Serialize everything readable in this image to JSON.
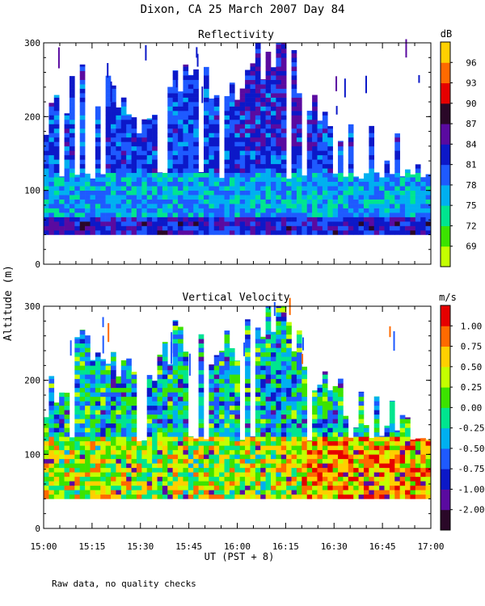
{
  "title": "Dixon, CA 25 March 2007  Day  84",
  "ylabel": "Altitude (m)",
  "xlabel": "UT  (PST + 8)",
  "footnote": "Raw data, no quality checks",
  "chart_data": [
    {
      "type": "heatmap",
      "title": "Reflectivity",
      "x_range_ut": [
        "15:00",
        "17:00"
      ],
      "xticks": [
        "15:00",
        "15:15",
        "15:30",
        "15:45",
        "16:00",
        "16:15",
        "16:30",
        "16:45",
        "17:00"
      ],
      "ylim": [
        0,
        300
      ],
      "yticks": [
        0,
        100,
        200,
        300
      ],
      "colorbar": {
        "unit": "dB",
        "vmin": 67.5,
        "vmax": 99,
        "ticks": [
          "96",
          "93",
          "90",
          "87",
          "84",
          "81",
          "78",
          "75",
          "72",
          "69"
        ],
        "colors": [
          "#c4ff00",
          "#3ce300",
          "#00e58f",
          "#00b0f0",
          "#1e5aff",
          "#0c18c8",
          "#5a0aa0",
          "#2a0828",
          "#e60000",
          "#ff6a00",
          "#ffd000"
        ]
      },
      "data_floor_m": 40,
      "clear_air_top_m": 120,
      "storm_tops_m": [
        {
          "time": "15:00",
          "top": 160
        },
        {
          "time": "15:10",
          "top": 230
        },
        {
          "time": "15:20",
          "top": 245
        },
        {
          "time": "15:30",
          "top": 200
        },
        {
          "time": "15:40",
          "top": 240
        },
        {
          "time": "15:50",
          "top": 250
        },
        {
          "time": "16:00",
          "top": 230
        },
        {
          "time": "16:10",
          "top": 285
        },
        {
          "time": "16:15",
          "top": 285
        },
        {
          "time": "16:20",
          "top": 230
        },
        {
          "time": "16:30",
          "top": 170
        },
        {
          "time": "17:00",
          "top": 130
        }
      ]
    },
    {
      "type": "heatmap",
      "title": "Vertical Velocity",
      "x_range_ut": [
        "15:00",
        "17:00"
      ],
      "xticks": [
        "15:00",
        "15:15",
        "15:30",
        "15:45",
        "16:00",
        "16:15",
        "16:30",
        "16:45",
        "17:00"
      ],
      "ylim": [
        0,
        300
      ],
      "yticks": [
        0,
        100,
        200,
        300
      ],
      "colorbar": {
        "unit": "m/s",
        "vmin": -2.0,
        "vmax": 1.2,
        "ticks": [
          "1.00",
          "0.75",
          "0.50",
          "0.25",
          "0.00",
          "-0.25",
          "-0.50",
          "-0.75",
          "-1.00",
          "-2.00"
        ],
        "colors": [
          "#2a0828",
          "#5a0aa0",
          "#0c18c8",
          "#1e5aff",
          "#00b0f0",
          "#00e58f",
          "#3ce300",
          "#c4ff00",
          "#ffd000",
          "#ff6a00",
          "#e60000"
        ]
      },
      "data_floor_m": 40,
      "clear_air_top_m": 120,
      "storm_tops_m": [
        {
          "time": "15:00",
          "top": 160
        },
        {
          "time": "15:10",
          "top": 230
        },
        {
          "time": "15:20",
          "top": 245
        },
        {
          "time": "15:30",
          "top": 200
        },
        {
          "time": "15:40",
          "top": 240
        },
        {
          "time": "15:50",
          "top": 250
        },
        {
          "time": "16:00",
          "top": 230
        },
        {
          "time": "16:10",
          "top": 285
        },
        {
          "time": "16:15",
          "top": 285
        },
        {
          "time": "16:20",
          "top": 230
        },
        {
          "time": "16:30",
          "top": 170
        },
        {
          "time": "17:00",
          "top": 130
        }
      ]
    }
  ]
}
